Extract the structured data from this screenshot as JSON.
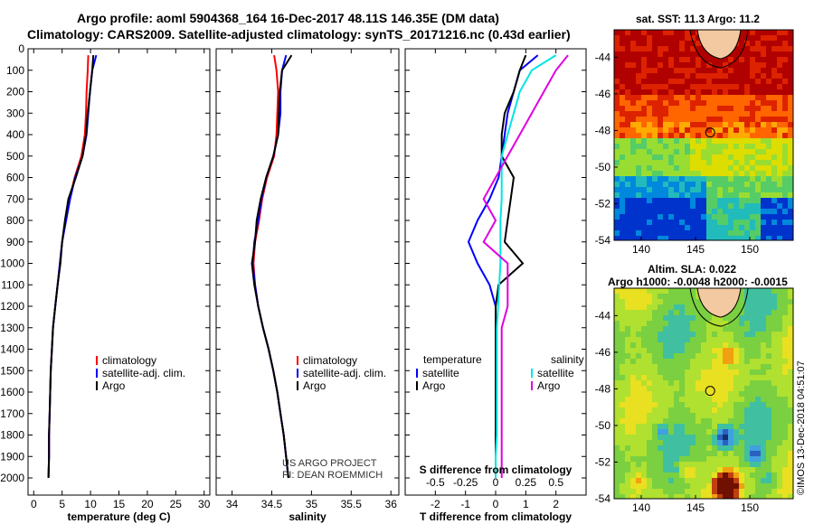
{
  "header": {
    "title_line1": "Argo profile: aoml 5904368_164 16-Dec-2017 48.11S 146.35E (DM data)",
    "title_line2": "Climatology: CARS2009. Satellite-adjusted climatology: synTS_20171216.nc (0.43d earlier)"
  },
  "colors": {
    "argo": "#000000",
    "climatology": "#ff0000",
    "satellite": "#0000ff",
    "salinity_sat": "#00e5e5",
    "salinity_argo": "#e000e0"
  },
  "chart_data": [
    {
      "type": "line",
      "id": "temperature",
      "xlabel": "temperature (deg C)",
      "ylabel": "",
      "xlim": [
        -1,
        31
      ],
      "ylim": [
        2080,
        0
      ],
      "xticks": [
        0,
        5,
        10,
        15,
        20,
        25,
        30
      ],
      "yticks": [
        0,
        100,
        200,
        300,
        400,
        500,
        600,
        700,
        800,
        900,
        1000,
        1100,
        1200,
        1300,
        1400,
        1500,
        1600,
        1700,
        1800,
        1900,
        2000
      ],
      "legend_position": "lower-center",
      "series": [
        {
          "name": "climatology",
          "color": "red",
          "x": [
            9.6,
            9.5,
            9.3,
            9.2,
            9.0,
            8.4,
            7.2,
            6.3,
            5.6,
            5.0,
            4.6,
            4.2,
            3.8,
            3.4,
            3.2,
            3.0,
            2.9,
            2.8,
            2.7,
            2.7,
            2.6
          ],
          "y": [
            30,
            100,
            200,
            300,
            400,
            500,
            600,
            700,
            800,
            900,
            1000,
            1100,
            1200,
            1300,
            1400,
            1500,
            1600,
            1700,
            1800,
            1900,
            2000
          ]
        },
        {
          "name": "satellite-adj. clim.",
          "color": "blue",
          "x": [
            11.0,
            10.3,
            9.9,
            9.6,
            9.3,
            8.6,
            7.3,
            6.4,
            5.7,
            5.0,
            4.6,
            4.2,
            3.8,
            3.4,
            3.2,
            3.0,
            2.9,
            2.8,
            2.7,
            2.7,
            2.6
          ],
          "y": [
            30,
            100,
            200,
            300,
            400,
            500,
            600,
            700,
            800,
            900,
            1000,
            1100,
            1200,
            1300,
            1400,
            1500,
            1600,
            1700,
            1800,
            1900,
            2000
          ]
        },
        {
          "name": "Argo",
          "color": "black",
          "x": [
            10.5,
            10.3,
            9.9,
            9.5,
            9.2,
            8.6,
            7.4,
            6.1,
            5.5,
            5.0,
            4.7,
            4.2,
            3.8,
            3.4,
            3.2,
            3.0,
            2.9,
            2.8,
            2.7,
            2.7,
            2.6
          ],
          "y": [
            30,
            100,
            200,
            300,
            400,
            500,
            600,
            700,
            800,
            900,
            1000,
            1100,
            1200,
            1300,
            1400,
            1500,
            1600,
            1700,
            1800,
            1900,
            2000
          ]
        }
      ]
    },
    {
      "type": "line",
      "id": "salinity",
      "xlabel": "salinity",
      "ylabel": "",
      "xlim": [
        33.8,
        36.1
      ],
      "ylim": [
        2080,
        0
      ],
      "xticks": [
        34,
        34.5,
        35,
        35.5,
        36
      ],
      "legend_position": "lower-center",
      "series": [
        {
          "name": "climatology",
          "color": "red",
          "x": [
            34.53,
            34.56,
            34.58,
            34.57,
            34.56,
            34.53,
            34.44,
            34.38,
            34.34,
            34.29,
            34.27,
            34.29,
            34.33,
            34.39,
            34.46,
            34.52,
            34.57,
            34.61,
            34.65,
            34.68,
            34.71
          ],
          "y": [
            30,
            100,
            200,
            300,
            400,
            500,
            600,
            700,
            800,
            900,
            1000,
            1100,
            1200,
            1300,
            1400,
            1500,
            1600,
            1700,
            1800,
            1900,
            2000
          ]
        },
        {
          "name": "satellite-adj. clim.",
          "color": "blue",
          "x": [
            34.68,
            34.63,
            34.61,
            34.61,
            34.58,
            34.52,
            34.43,
            34.37,
            34.33,
            34.28,
            34.26,
            34.29,
            34.33,
            34.39,
            34.46,
            34.52,
            34.57,
            34.61,
            34.65,
            34.68,
            34.71
          ],
          "y": [
            30,
            100,
            200,
            300,
            400,
            500,
            600,
            700,
            800,
            900,
            1000,
            1100,
            1200,
            1300,
            1400,
            1500,
            1600,
            1700,
            1800,
            1900,
            2000
          ]
        },
        {
          "name": "Argo",
          "color": "black",
          "x": [
            34.75,
            34.63,
            34.6,
            34.59,
            34.58,
            34.52,
            34.43,
            34.36,
            34.31,
            34.29,
            34.25,
            34.28,
            34.33,
            34.39,
            34.46,
            34.52,
            34.57,
            34.61,
            34.65,
            34.68,
            34.71
          ],
          "y": [
            30,
            100,
            200,
            300,
            400,
            500,
            600,
            700,
            800,
            900,
            1000,
            1100,
            1200,
            1300,
            1400,
            1500,
            1600,
            1700,
            1800,
            1900,
            2000
          ]
        }
      ],
      "annotations": [
        "US ARGO PROJECT",
        "PI: DEAN ROEMMICH"
      ]
    },
    {
      "type": "line",
      "id": "differences",
      "xlabel": "T difference from climatology",
      "x2label": "S difference from climatology",
      "xlim": [
        -3,
        3
      ],
      "ylim": [
        2080,
        0
      ],
      "xticks": [
        -2,
        -1,
        0,
        1,
        2
      ],
      "x2ticks": [
        "-0.5",
        "-0.25",
        "0",
        "0.25",
        "0.5"
      ],
      "legend_position": "lower-center",
      "legend_headers": [
        "temperature",
        "salinity"
      ],
      "series": [
        {
          "name": "satellite",
          "group": "temperature",
          "color": "blue",
          "x": [
            1.4,
            0.8,
            0.6,
            0.4,
            0.3,
            0.2,
            0.1,
            -0.2,
            -0.6,
            -0.9,
            -0.6,
            -0.2,
            0.0,
            0.0,
            0.0,
            0.0,
            0.0,
            0.0,
            0.0,
            0.0,
            0.0
          ],
          "y": [
            30,
            100,
            200,
            300,
            400,
            500,
            600,
            700,
            800,
            900,
            1000,
            1100,
            1200,
            1300,
            1400,
            1500,
            1600,
            1700,
            1800,
            1900,
            2000
          ]
        },
        {
          "name": "Argo",
          "group": "temperature",
          "color": "black",
          "x": [
            1.0,
            0.8,
            0.6,
            0.3,
            0.2,
            0.2,
            0.6,
            0.5,
            0.4,
            0.3,
            0.9,
            0.1,
            0.0,
            0.0,
            0.0,
            0.0,
            0.0,
            0.0,
            0.0,
            0.0,
            0.0
          ],
          "y": [
            30,
            100,
            200,
            300,
            400,
            500,
            600,
            700,
            800,
            900,
            1000,
            1100,
            1200,
            1300,
            1400,
            1500,
            1600,
            1700,
            1800,
            1900,
            2000
          ]
        },
        {
          "name": "satellite",
          "group": "salinity",
          "color": "cyan",
          "x": [
            0.5,
            0.3,
            0.2,
            0.15,
            0.1,
            0.05,
            0.05,
            0.05,
            0.04,
            0.04,
            0.04,
            0.03,
            0.02,
            0.01,
            0.01,
            0.01,
            0.01,
            0.01,
            0.01,
            0.0,
            0.0
          ],
          "y": [
            30,
            100,
            200,
            300,
            400,
            500,
            600,
            700,
            800,
            900,
            1000,
            1100,
            1200,
            1300,
            1400,
            1500,
            1600,
            1700,
            1800,
            1900,
            2000
          ]
        },
        {
          "name": "Argo",
          "group": "salinity",
          "color": "magenta",
          "x": [
            0.6,
            0.5,
            0.4,
            0.3,
            0.2,
            0.1,
            0.0,
            -0.1,
            0.0,
            -0.1,
            0.1,
            0.1,
            0.1,
            0.05,
            0.05,
            0.05,
            0.05,
            0.05,
            0.05,
            0.05,
            0.05
          ],
          "y": [
            30,
            100,
            200,
            300,
            400,
            500,
            600,
            700,
            800,
            900,
            1000,
            1100,
            1200,
            1300,
            1400,
            1500,
            1600,
            1700,
            1800,
            1900,
            2000
          ]
        }
      ]
    },
    {
      "type": "heatmap",
      "id": "sst_map",
      "title": "sat. SST: 11.3 Argo: 11.2",
      "xlim": [
        137.5,
        154
      ],
      "ylim": [
        -54,
        -42.5
      ],
      "xticks": [
        140,
        145,
        150
      ],
      "yticks": [
        -44,
        -46,
        -48,
        -50,
        -52,
        -54
      ],
      "marker": {
        "lon": 146.35,
        "lat": -48.11
      }
    },
    {
      "type": "heatmap",
      "id": "sla_map",
      "title_line1": "Altim. SLA: 0.022",
      "title_line2": "Argo h1000: -0.0048 h2000: -0.0015",
      "xlim": [
        137.5,
        154
      ],
      "ylim": [
        -54,
        -42.5
      ],
      "xticks": [
        140,
        145,
        150
      ],
      "yticks": [
        -44,
        -46,
        -48,
        -50,
        -52,
        -54
      ],
      "marker": {
        "lon": 146.35,
        "lat": -48.11
      }
    }
  ],
  "footer": {
    "stamp": "©IMOS 13-Dec-2018 04:51:07"
  }
}
